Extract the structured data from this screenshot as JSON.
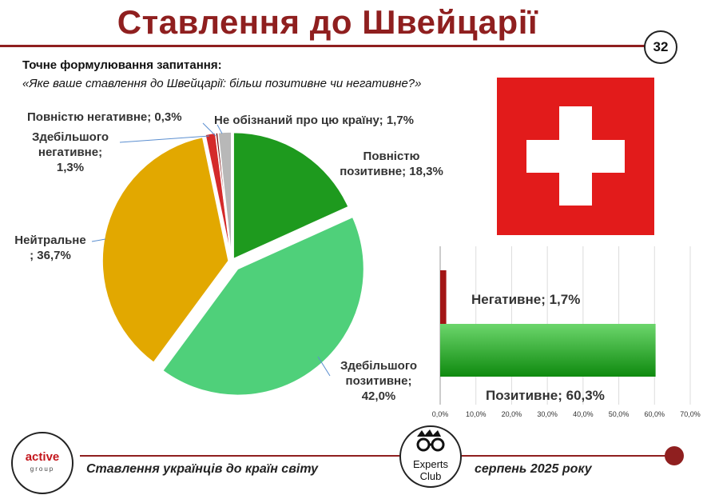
{
  "header": {
    "title": "Ставлення до Швейцарії",
    "page_number": "32"
  },
  "question": {
    "label": "Точне формулювання запитання:",
    "text": "«Яке ваше ставлення до Швейцарії: більш позитивне чи негативне?»"
  },
  "chart_data": [
    {
      "type": "pie",
      "title": "",
      "slices": [
        {
          "name": "Повністю позитивне",
          "value": 18.3,
          "label_lines": [
            "Повністю",
            "позитивне; 18,3%"
          ],
          "color": "#1e9a1e"
        },
        {
          "name": "Здебільшого позитивне",
          "value": 42.0,
          "label_lines": [
            "Здебільшого",
            "позитивне;",
            "42,0%"
          ],
          "color": "#4fd07a"
        },
        {
          "name": "Нейтральне",
          "value": 36.7,
          "label_lines": [
            "Нейтральне",
            "; 36,7%"
          ],
          "color": "#e2a800"
        },
        {
          "name": "Здебільшого негативне",
          "value": 1.3,
          "label_lines": [
            "Здебільшого",
            "негативне;",
            "1,3%"
          ],
          "color": "#d42a2a"
        },
        {
          "name": "Повністю негативне",
          "value": 0.3,
          "label_lines": [
            "Повністю негативне; 0,3%"
          ],
          "color": "#7a0c0c"
        },
        {
          "name": "Не обізнаний про цю країну",
          "value": 1.7,
          "label_lines": [
            "Не обізнаний про цю країну; 1,7%"
          ],
          "color": "#b8b8b8"
        }
      ]
    },
    {
      "type": "bar",
      "orientation": "horizontal",
      "categories": [
        "Негативне",
        "Позитивне"
      ],
      "values": [
        1.7,
        60.3
      ],
      "labels": [
        "Негативне; 1,7%",
        "Позитивне; 60,3%"
      ],
      "colors": [
        "#a31515",
        "#1f9e1f"
      ],
      "xlim": [
        0,
        70
      ],
      "ticks": [
        "0,0%",
        "10,0%",
        "20,0%",
        "30,0%",
        "40,0%",
        "50,0%",
        "60,0%",
        "70,0%"
      ],
      "grid": true
    }
  ],
  "footer": {
    "left_text": "Ставлення українців до країн світу",
    "right_text": "серпень 2025 року",
    "logo_active_main": "active",
    "logo_active_sub": "group",
    "logo_experts_line1": "Experts",
    "logo_experts_line2": "Club"
  }
}
